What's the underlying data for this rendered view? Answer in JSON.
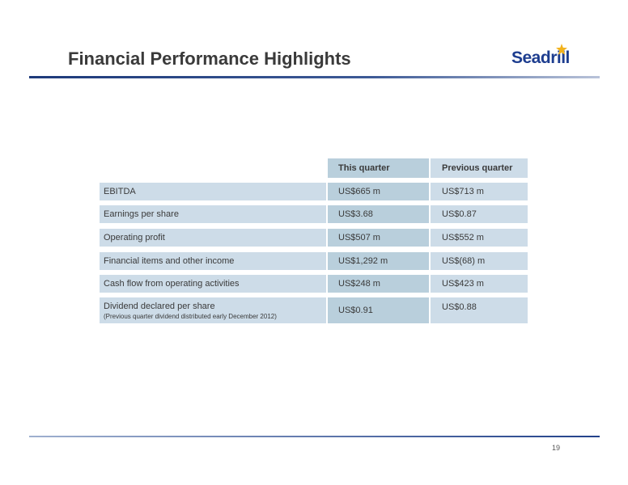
{
  "header": {
    "title": "Financial Performance Highlights",
    "logo_text": "Seadrill"
  },
  "table": {
    "headers": {
      "this_quarter": "This quarter",
      "previous_quarter": "Previous quarter"
    },
    "rows": [
      {
        "label": "EBITDA",
        "this_quarter": "US$665 m",
        "previous_quarter": "US$713 m"
      },
      {
        "label": "Earnings per share",
        "this_quarter": "US$3.68",
        "previous_quarter": "US$0.87"
      },
      {
        "label": "Operating profit",
        "this_quarter": "US$507 m",
        "previous_quarter": "US$552 m"
      },
      {
        "label": "Financial items and other income",
        "this_quarter": "US$1,292 m",
        "previous_quarter": "US$(68) m"
      },
      {
        "label": "Cash flow from operating activities",
        "this_quarter": "US$248 m",
        "previous_quarter": "US$423 m"
      },
      {
        "label": "Dividend declared per share",
        "sublabel": "(Previous quarter dividend distributed early December 2012)",
        "this_quarter": "US$0.91",
        "previous_quarter": "US$0.88"
      }
    ]
  },
  "footer": {
    "page_number": "19"
  },
  "colors": {
    "brand_blue": "#1d3d8f",
    "star_gold": "#f2b21c",
    "row_light": "#cddce8",
    "row_mid": "#b9cfdc"
  }
}
